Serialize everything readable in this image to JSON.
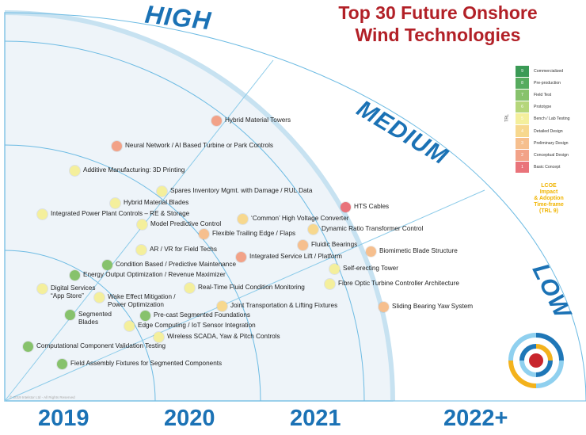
{
  "title_line1": "Top 30 Future Onshore",
  "title_line2": "Wind Technologies",
  "zones": {
    "high": "HIGH",
    "medium": "MEDIUM",
    "low": "LOW"
  },
  "years": [
    "2019",
    "2020",
    "2021",
    "2022+"
  ],
  "trl_side_label": "TRL",
  "lcoe_note": "LCOE\nImpact\n& Adoption\nTime-frame\n(TRL 9)",
  "copyright": "© 2019 Intelstor Ltd - All Rights Reserved",
  "trl_colors": {
    "9": "#3a9a55",
    "8": "#56ab5e",
    "7": "#87c26c",
    "6": "#b5d67a",
    "5": "#f4ef9c",
    "4": "#f7d88e",
    "3": "#f6bf8e",
    "2": "#f2a288",
    "1": "#e9737a"
  },
  "legend": [
    {
      "trl": "9",
      "label": "Commercialized"
    },
    {
      "trl": "8",
      "label": "Pre-production"
    },
    {
      "trl": "7",
      "label": "Field Test"
    },
    {
      "trl": "6",
      "label": "Prototype"
    },
    {
      "trl": "5",
      "label": "Bench / Lab Testing"
    },
    {
      "trl": "4",
      "label": "Detailed Design"
    },
    {
      "trl": "3",
      "label": "Preliminary Design"
    },
    {
      "trl": "2",
      "label": "Conceptual Design"
    },
    {
      "trl": "1",
      "label": "Basic Concept"
    }
  ],
  "technologies": [
    {
      "label": "Hybrid Material Towers",
      "trl": "2"
    },
    {
      "label": "Neural Network / AI Based Turbine or Park Controls",
      "trl": "2"
    },
    {
      "label": "Additive Manufacturing: 3D Printing",
      "trl": "5"
    },
    {
      "label": "Spares Inventory Mgmt. with Damage / RUL Data",
      "trl": "5"
    },
    {
      "label": "Hybrid Material Blades",
      "trl": "5"
    },
    {
      "label": "HTS Cables",
      "trl": "1"
    },
    {
      "label": "Integrated Power Plant Controls – RE & Storage",
      "trl": "5"
    },
    {
      "label": "‘Common’ High Voltage Converter",
      "trl": "4"
    },
    {
      "label": "Model Predictive Control",
      "trl": "5"
    },
    {
      "label": "Dynamic Ratio Transformer Control",
      "trl": "4"
    },
    {
      "label": "Flexible Trailing Edge / Flaps",
      "trl": "3"
    },
    {
      "label": "Fluidic Bearings",
      "trl": "3"
    },
    {
      "label": "AR / VR for Field Techs",
      "trl": "5"
    },
    {
      "label": "Biomimetic Blade Structure",
      "trl": "3"
    },
    {
      "label": "Integrated Service Lift / Platform",
      "trl": "2"
    },
    {
      "label": "Condition Based / Predictive Maintenance",
      "trl": "7"
    },
    {
      "label": "Self-erecting Tower",
      "trl": "5"
    },
    {
      "label": "Energy Output Optimization / Revenue Maximizer",
      "trl": "7"
    },
    {
      "label": "Fibre Optic Turbine Controller Architecture",
      "trl": "5"
    },
    {
      "label": "Digital Services\n“App Store”",
      "trl": "5"
    },
    {
      "label": "Real-Time Fluid Condition Monitoring",
      "trl": "5"
    },
    {
      "label": "Wake Effect Mitigation /\nPower Optimization",
      "trl": "5"
    },
    {
      "label": "Joint Transportation & Lifting Fixtures",
      "trl": "4"
    },
    {
      "label": "Sliding Bearing Yaw System",
      "trl": "3"
    },
    {
      "label": "Segmented\nBlades",
      "trl": "7"
    },
    {
      "label": "Pre-cast Segmented Foundations",
      "trl": "7"
    },
    {
      "label": "Edge Computing / IoT Sensor Integration",
      "trl": "5"
    },
    {
      "label": "Wireless SCADA, Yaw & Pitch Controls",
      "trl": "5"
    },
    {
      "label": "Computational Component Validation Testing",
      "trl": "7"
    },
    {
      "label": "Field Assembly Fixtures for Segmented Components",
      "trl": "7"
    }
  ]
}
